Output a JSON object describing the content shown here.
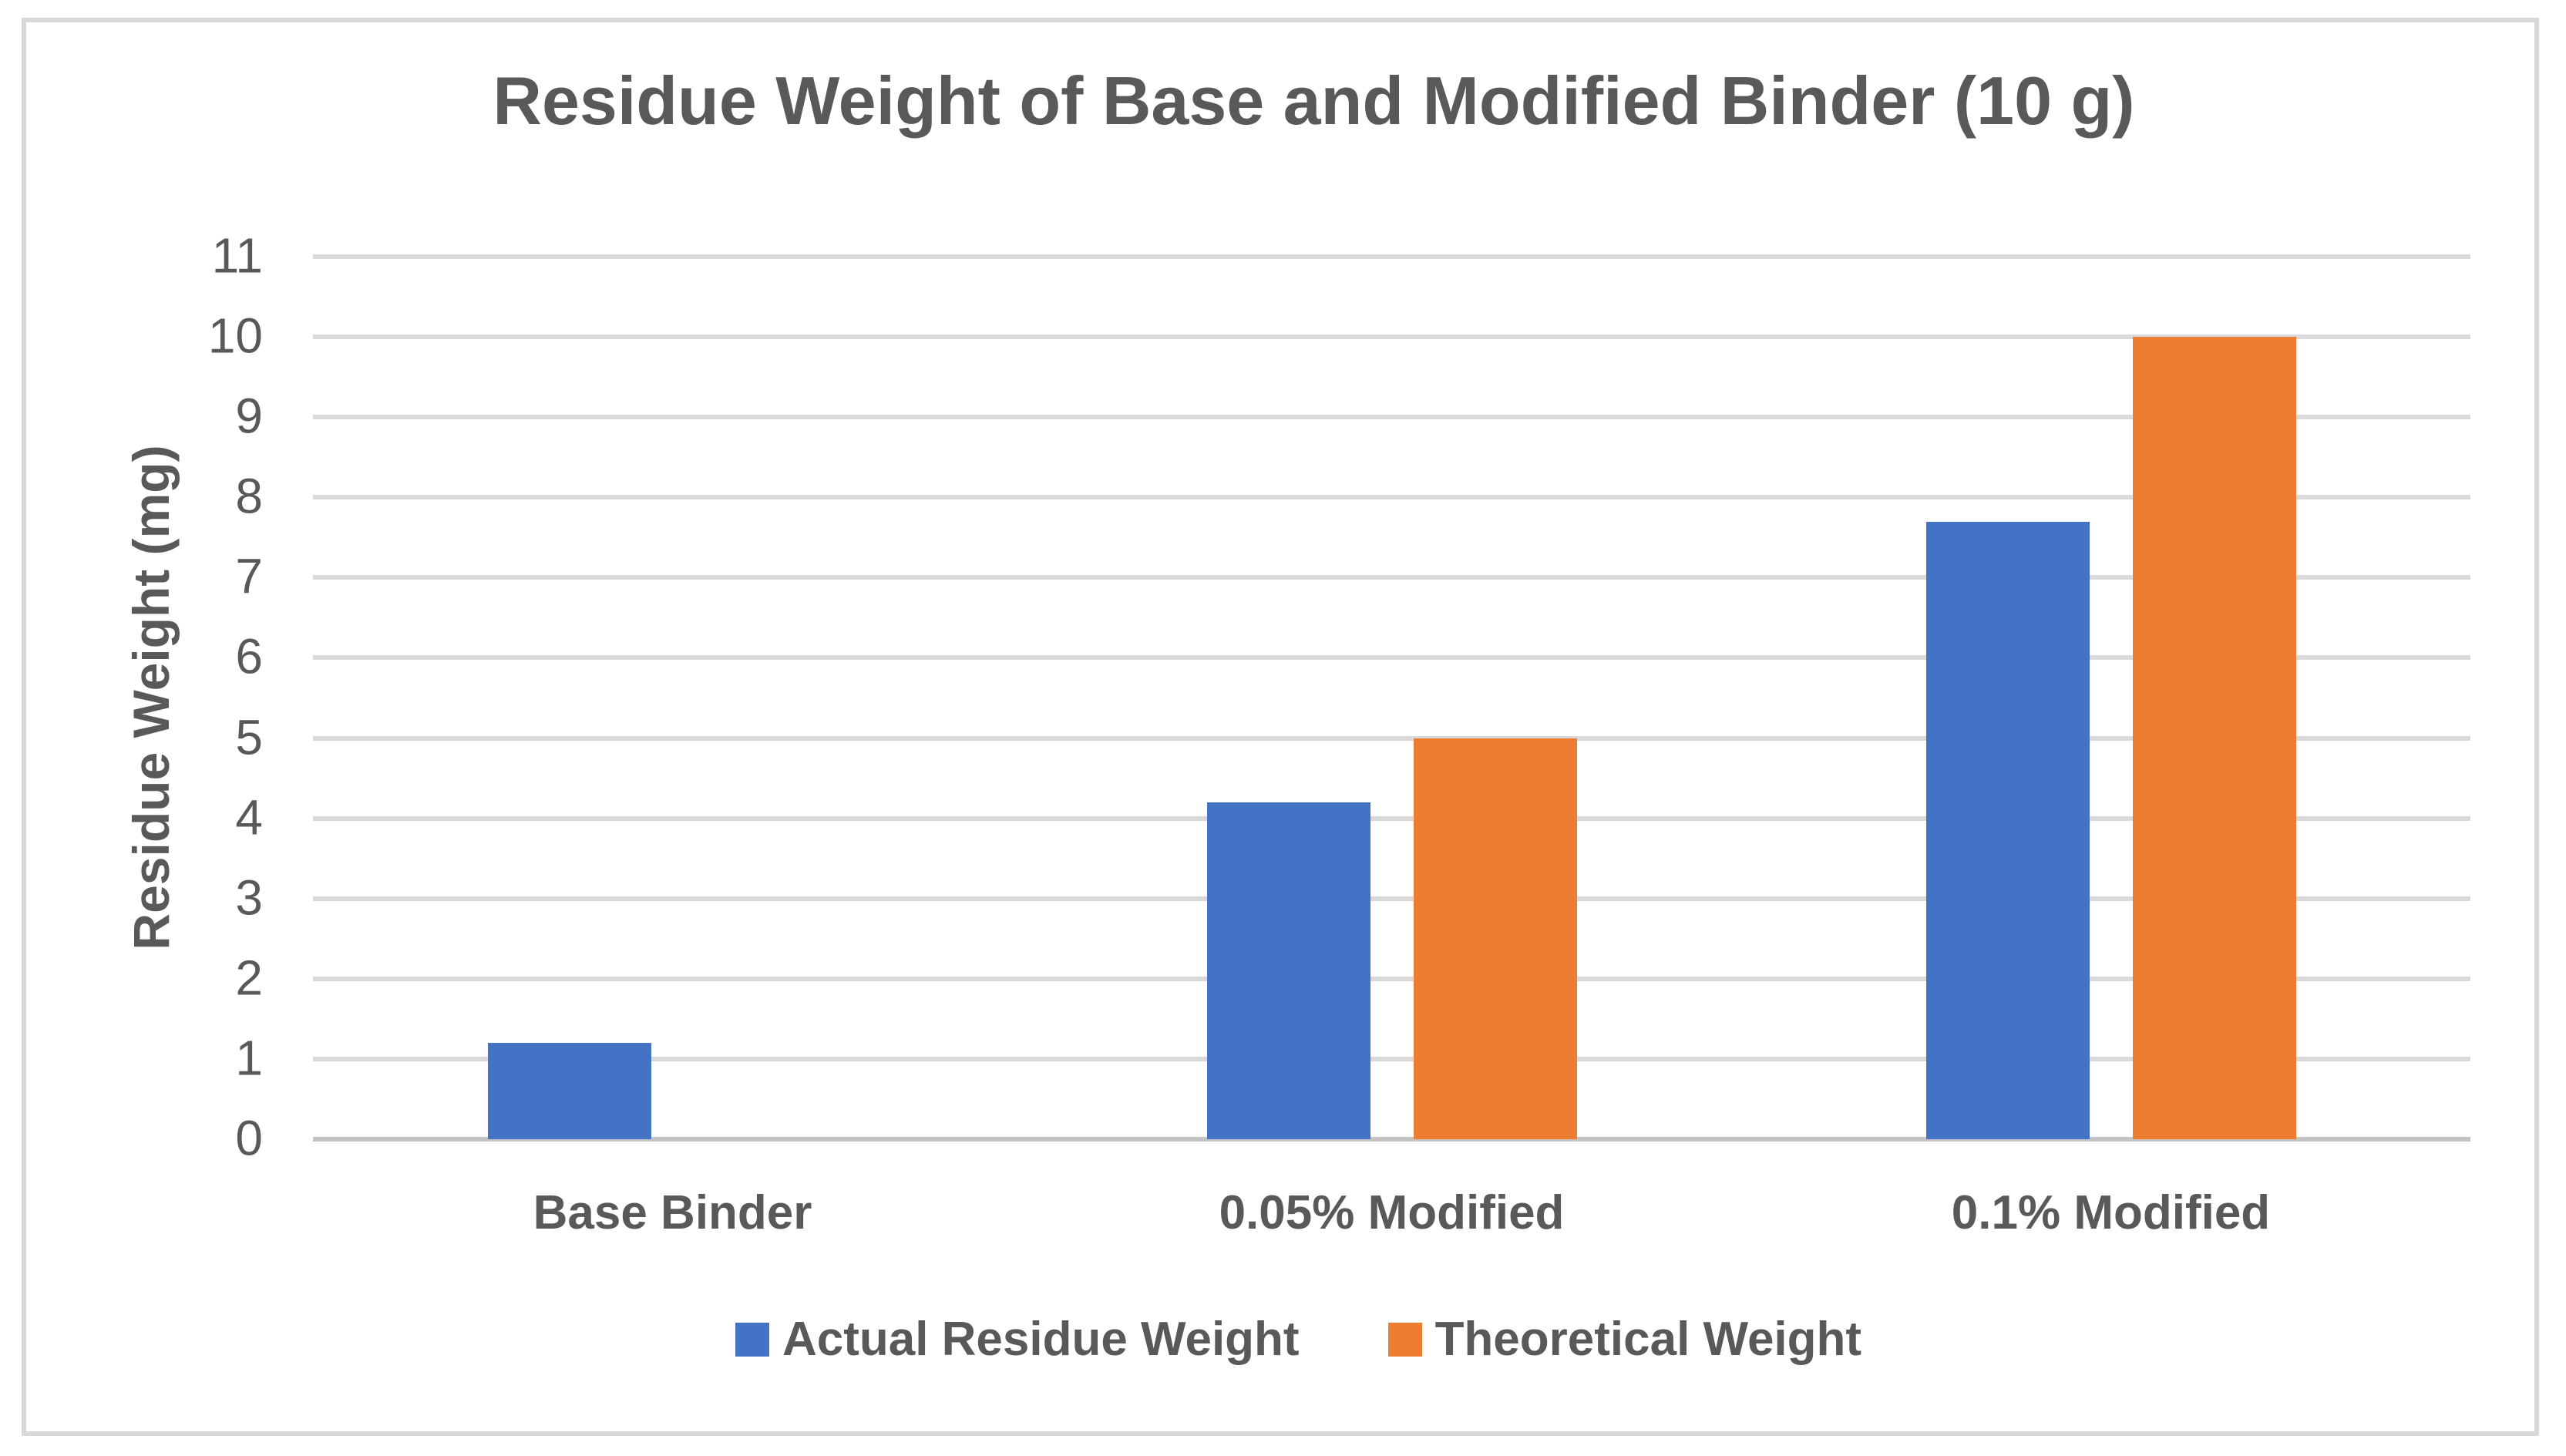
{
  "chart_data": {
    "type": "bar",
    "title": "Residue Weight of Base and Modified Binder (10 g)",
    "ylabel": "Residue Weight (mg)",
    "xlabel": "",
    "categories": [
      "Base Binder",
      "0.05% Modified",
      "0.1% Modified"
    ],
    "series": [
      {
        "name": "Actual Residue Weight",
        "color": "#4472C4",
        "values": [
          1.2,
          4.2,
          7.7
        ]
      },
      {
        "name": "Theoretical Weight",
        "color": "#ED7D31",
        "values": [
          0,
          5,
          10
        ]
      }
    ],
    "ylim": [
      0,
      11
    ],
    "ytick_step": 1,
    "ytick_labels": [
      "0",
      "1",
      "2",
      "3",
      "4",
      "5",
      "6",
      "7",
      "8",
      "9",
      "10",
      "11"
    ],
    "grid": true,
    "legend_position": "bottom"
  },
  "style_colors": {
    "text": "#595959",
    "gridline": "#d9d9d9",
    "zero_line": "#c3c3c3",
    "frame_border": "#d8d8d8",
    "background": "#ffffff"
  }
}
